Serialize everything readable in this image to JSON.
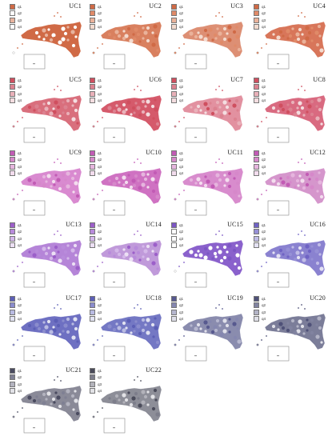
{
  "legend_labels": [
    "q1",
    "q2",
    "q3",
    "q4"
  ],
  "panels": [
    {
      "title": "UC1",
      "colors": [
        "#d06a46",
        "#ffffff",
        "#e7b39e",
        "#ffffff"
      ],
      "fill": "#d06a46"
    },
    {
      "title": "UC2",
      "colors": [
        "#d06a46",
        "#e08a68",
        "#eab29a",
        "#f3dace"
      ],
      "fill": "#d9805f"
    },
    {
      "title": "UC3",
      "colors": [
        "#d06a46",
        "#e08a68",
        "#eab29a",
        "#f3dace"
      ],
      "fill": "#dd8f74"
    },
    {
      "title": "UC4",
      "colors": [
        "#d06a46",
        "#e08a68",
        "#eab29a",
        "#f3dace"
      ],
      "fill": "#d8765a"
    },
    {
      "title": "UC5",
      "colors": [
        "#cf4f5f",
        "#dc8290",
        "#e9b1b9",
        "#f4dde0"
      ],
      "fill": "#d96f7d"
    },
    {
      "title": "UC6",
      "colors": [
        "#cf4f5f",
        "#dc8290",
        "#e9b1b9",
        "#f4dde0"
      ],
      "fill": "#d55a6b"
    },
    {
      "title": "UC7",
      "colors": [
        "#cf4f5f",
        "#dc8290",
        "#e9b1b9",
        "#f4dde0"
      ],
      "fill": "#e291a0"
    },
    {
      "title": "UC8",
      "colors": [
        "#cf4f5f",
        "#dc8290",
        "#e9b1b9",
        "#f4dde0"
      ],
      "fill": "#d96a80"
    },
    {
      "title": "UC9",
      "colors": [
        "#c25bb5",
        "#d688ca",
        "#e6b5de",
        "#f3ddee"
      ],
      "fill": "#d98ad0"
    },
    {
      "title": "UC10",
      "colors": [
        "#c25bb5",
        "#d688ca",
        "#e6b5de",
        "#f3ddee"
      ],
      "fill": "#cf72c2"
    },
    {
      "title": "UC11",
      "colors": [
        "#c25bb5",
        "#d688ca",
        "#e6b5de",
        "#f3ddee"
      ],
      "fill": "#d88ccd"
    },
    {
      "title": "UC12",
      "colors": [
        "#c25bb5",
        "#d688ca",
        "#e6b5de",
        "#f3ddee"
      ],
      "fill": "#d596cc"
    },
    {
      "title": "UC13",
      "colors": [
        "#9c5fc9",
        "#b88bdb",
        "#d4b8e9",
        "#ece0f4"
      ],
      "fill": "#b585d8"
    },
    {
      "title": "UC14",
      "colors": [
        "#9c5fc9",
        "#b88bdb",
        "#d4b8e9",
        "#ece0f4"
      ],
      "fill": "#c09ada"
    },
    {
      "title": "UC15",
      "colors": [
        "#7c56c4",
        "#ffffff",
        "#ffffff",
        "#ffffff"
      ],
      "fill": "#8a61cc"
    },
    {
      "title": "UC16",
      "colors": [
        "#6f63c4",
        "#9690d6",
        "#c0bce6",
        "#e4e2f3"
      ],
      "fill": "#8a82d0"
    },
    {
      "title": "UC17",
      "colors": [
        "#5c5fb6",
        "#8a8ccd",
        "#b9bbe2",
        "#e1e2f1"
      ],
      "fill": "#6e70c2"
    },
    {
      "title": "UC18",
      "colors": [
        "#5c5fb6",
        "#8a8ccd",
        "#b9bbe2",
        "#e1e2f1"
      ],
      "fill": "#7478c4"
    },
    {
      "title": "UC19",
      "colors": [
        "#57598f",
        "#8587b0",
        "#b6b7cf",
        "#e0e0ea"
      ],
      "fill": "#8a8cae"
    },
    {
      "title": "UC20",
      "colors": [
        "#4f5178",
        "#8183a0",
        "#b3b4c6",
        "#e0e0e8"
      ],
      "fill": "#7b7d99"
    },
    {
      "title": "UC21",
      "colors": [
        "#4a4b60",
        "#7f8093",
        "#b3b3bf",
        "#e2e2e7"
      ],
      "fill": "#8a8a98"
    },
    {
      "title": "UC22",
      "colors": [
        "#4a4b5a",
        "#7d7e8b",
        "#b2b2ba",
        "#e2e2e6"
      ],
      "fill": "#8d8e98"
    }
  ]
}
